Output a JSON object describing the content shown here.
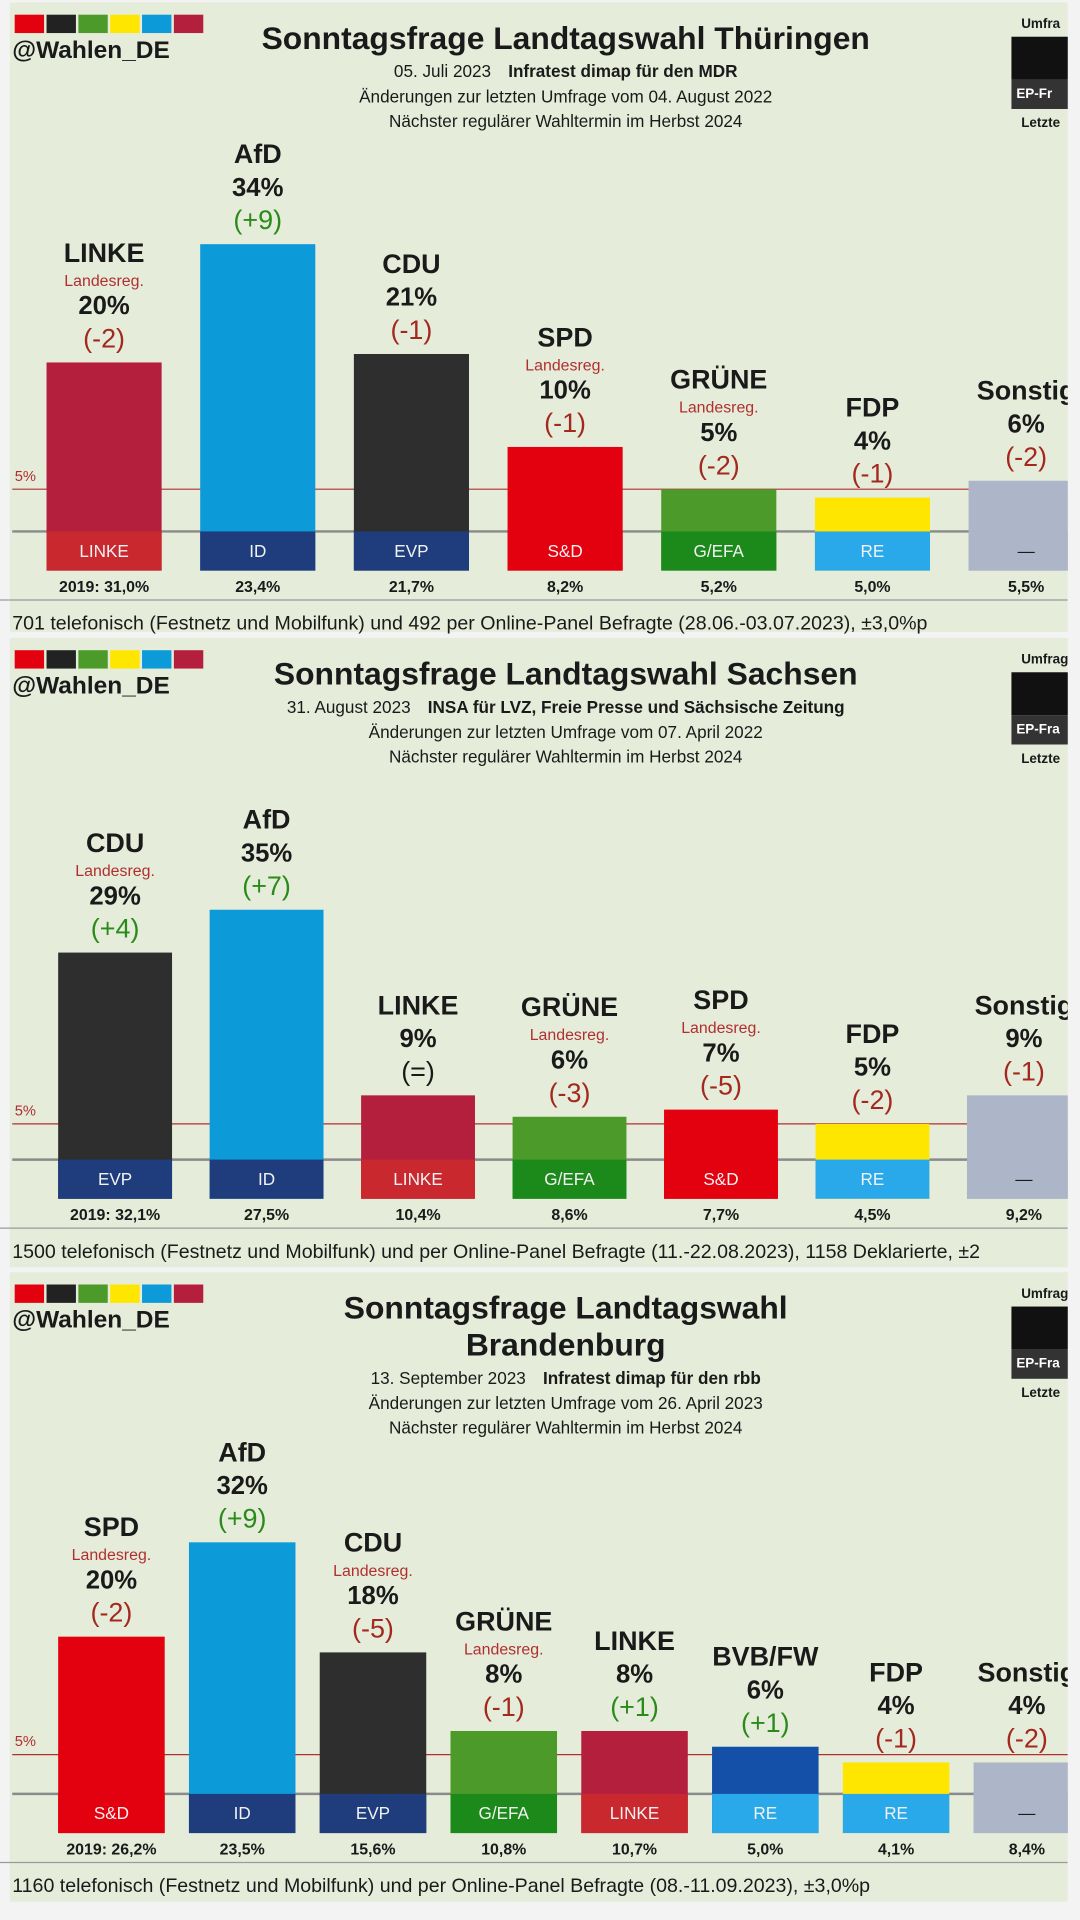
{
  "chart_data": [
    {
      "type": "bar",
      "logo": "@Wahlen_DE",
      "side_labels": [
        "Umfra",
        "EP-Fr",
        "Letzte"
      ],
      "title_lines": [
        "Sonntagsfrage Landtagswahl Thüringen"
      ],
      "date": "05. Juli 2023",
      "source": "Infratest dimap für den MDR",
      "subtitle_lines": [
        "Änderungen zur letzten Umfrage vom 04. August 2022",
        "Nächster regulärer Wahltermin im Herbst 2024"
      ],
      "categories": [
        "LINKE",
        "AfD",
        "CDU",
        "SPD",
        "GRÜNE",
        "FDP",
        "Sonstig"
      ],
      "values": [
        20,
        34,
        21,
        10,
        5,
        4,
        6
      ],
      "value_labels": [
        "20%",
        "34%",
        "21%",
        "10%",
        "5%",
        "4%",
        "6%"
      ],
      "changes": [
        "(-2)",
        "(+9)",
        "(-1)",
        "(-1)",
        "(-2)",
        "(-1)",
        "(-2)"
      ],
      "notes": [
        "Landesreg.",
        null,
        null,
        "Landesreg.",
        "Landesreg.",
        null,
        null
      ],
      "colors": [
        "#b51f3e",
        "#0c9ad8",
        "#2e2e2e",
        "#e3000f",
        "#4c9a2a",
        "#ffe600",
        "#adb5c8"
      ],
      "groups": [
        "LINKE",
        "ID",
        "EVP",
        "S&D",
        "G/EFA",
        "RE",
        "—"
      ],
      "group_colors": [
        "#c8282e",
        "#1f3d7c",
        "#1f3d7c",
        "#e3000f",
        "#1b8a1b",
        "#29a9ea",
        "#adb5c8"
      ],
      "previous": [
        "2019: 31,0%",
        "23,4%",
        "21,7%",
        "8,2%",
        "5,2%",
        "5,0%",
        "5,5%"
      ],
      "threshold": {
        "value": 5,
        "label": "5%"
      },
      "footnote": "701 telefonisch (Festnetz und Mobilfunk) und 492 per Online-Panel Befragte (28.06.-03.07.2023), ±3,0%p"
    },
    {
      "type": "bar",
      "logo": "@Wahlen_DE",
      "side_labels": [
        "Umfrag",
        "EP-Fra",
        "Letzte"
      ],
      "title_lines": [
        "Sonntagsfrage Landtagswahl Sachsen"
      ],
      "date": "31. August 2023",
      "source": "INSA für LVZ, Freie Presse und Sächsische Zeitung",
      "subtitle_lines": [
        "Änderungen zur letzten Umfrage vom 07. April 2022",
        "Nächster regulärer Wahltermin im Herbst 2024"
      ],
      "categories": [
        "CDU",
        "AfD",
        "LINKE",
        "GRÜNE",
        "SPD",
        "FDP",
        "Sonstig"
      ],
      "values": [
        29,
        35,
        9,
        6,
        7,
        5,
        9
      ],
      "value_labels": [
        "29%",
        "35%",
        "9%",
        "6%",
        "7%",
        "5%",
        "9%"
      ],
      "changes": [
        "(+4)",
        "(+7)",
        "(=)",
        "(-3)",
        "(-5)",
        "(-2)",
        "(-1)"
      ],
      "notes": [
        "Landesreg.",
        null,
        null,
        "Landesreg.",
        "Landesreg.",
        null,
        null
      ],
      "colors": [
        "#2e2e2e",
        "#0c9ad8",
        "#b51f3e",
        "#4c9a2a",
        "#e3000f",
        "#ffe600",
        "#adb5c8"
      ],
      "groups": [
        "EVP",
        "ID",
        "LINKE",
        "G/EFA",
        "S&D",
        "RE",
        "—"
      ],
      "group_colors": [
        "#1f3d7c",
        "#1f3d7c",
        "#c8282e",
        "#1b8a1b",
        "#e3000f",
        "#29a9ea",
        "#adb5c8"
      ],
      "previous": [
        "2019: 32,1%",
        "27,5%",
        "10,4%",
        "8,6%",
        "7,7%",
        "4,5%",
        "9,2%"
      ],
      "threshold": {
        "value": 5,
        "label": "5%"
      },
      "footnote": "1500 telefonisch (Festnetz und Mobilfunk) und per Online-Panel Befragte (11.-22.08.2023), 1158 Deklarierte, ±2"
    },
    {
      "type": "bar",
      "logo": "@Wahlen_DE",
      "side_labels": [
        "Umfrag",
        "EP-Fra",
        "Letzte"
      ],
      "title_lines": [
        "Sonntagsfrage Landtagswahl",
        "Brandenburg"
      ],
      "date": "13. September 2023",
      "source": "Infratest dimap für den rbb",
      "subtitle_lines": [
        "Änderungen zur letzten Umfrage vom 26. April 2023",
        "Nächster regulärer Wahltermin im Herbst 2024"
      ],
      "categories": [
        "SPD",
        "AfD",
        "CDU",
        "GRÜNE",
        "LINKE",
        "BVB/FW",
        "FDP",
        "Sonstig"
      ],
      "values": [
        20,
        32,
        18,
        8,
        8,
        6,
        4,
        4
      ],
      "value_labels": [
        "20%",
        "32%",
        "18%",
        "8%",
        "8%",
        "6%",
        "4%",
        "4%"
      ],
      "changes": [
        "(-2)",
        "(+9)",
        "(-5)",
        "(-1)",
        "(+1)",
        "(+1)",
        "(-1)",
        "(-2)"
      ],
      "notes": [
        "Landesreg.",
        null,
        "Landesreg.",
        "Landesreg.",
        null,
        null,
        null,
        null
      ],
      "colors": [
        "#e3000f",
        "#0c9ad8",
        "#2e2e2e",
        "#4c9a2a",
        "#b51f3e",
        "#1450a8",
        "#ffe600",
        "#adb5c8"
      ],
      "groups": [
        "S&D",
        "ID",
        "EVP",
        "G/EFA",
        "LINKE",
        "RE",
        "RE",
        "—"
      ],
      "group_colors": [
        "#e3000f",
        "#1f3d7c",
        "#1f3d7c",
        "#1b8a1b",
        "#c8282e",
        "#29a9ea",
        "#29a9ea",
        "#adb5c8"
      ],
      "previous": [
        "2019: 26,2%",
        "23,5%",
        "15,6%",
        "10,8%",
        "10,7%",
        "5,0%",
        "4,1%",
        "8,4%"
      ],
      "threshold": {
        "value": 5,
        "label": "5%"
      },
      "footnote": "1160 telefonisch (Festnetz und Mobilfunk) und per Online-Panel Befragte (08.-11.09.2023), ±3,0%p"
    }
  ]
}
